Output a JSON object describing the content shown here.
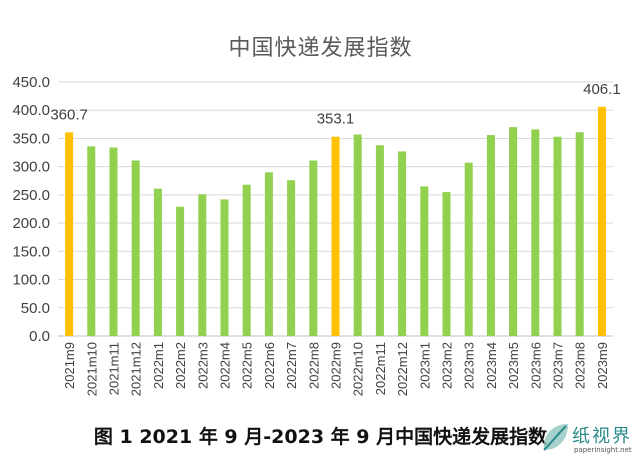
{
  "colors": {
    "normal": "#92D050",
    "highlight": "#FFC000",
    "grid": "#d9d9d9",
    "axis_text": "#404040"
  },
  "caption": "图 1  2021 年 9 月-2023 年 9 月中国快递发展指数",
  "watermark": {
    "logo": "纸视界",
    "url": "paperinsight.net"
  },
  "chart_data": {
    "type": "bar",
    "title": "中国快递发展指数",
    "xlabel": "",
    "ylabel": "",
    "ylim": [
      0,
      450
    ],
    "yticks": [
      "0.0",
      "50.0",
      "100.0",
      "150.0",
      "200.0",
      "250.0",
      "300.0",
      "350.0",
      "400.0",
      "450.0"
    ],
    "grid": true,
    "legend": "none",
    "categories": [
      "2021m9",
      "2021m10",
      "2021m11",
      "2021m12",
      "2022m1",
      "2022m2",
      "2022m3",
      "2022m4",
      "2022m5",
      "2022m6",
      "2022m7",
      "2022m8",
      "2022m9",
      "2022m10",
      "2022m11",
      "2022m12",
      "2023m1",
      "2023m2",
      "2023m3",
      "2023m4",
      "2023m5",
      "2023m6",
      "2023m7",
      "2023m8",
      "2023m9"
    ],
    "values": [
      360.7,
      336,
      334,
      311,
      261,
      229,
      251,
      242,
      268,
      290,
      276,
      311,
      353.1,
      357,
      338,
      327,
      265,
      255,
      307,
      356,
      370,
      366,
      353,
      361,
      406.1
    ],
    "highlighted": [
      "2021m9",
      "2022m9",
      "2023m9"
    ],
    "data_labels": [
      {
        "category": "2021m9",
        "text": "360.7"
      },
      {
        "category": "2022m9",
        "text": "353.1"
      },
      {
        "category": "2023m9",
        "text": "406.1"
      }
    ]
  }
}
